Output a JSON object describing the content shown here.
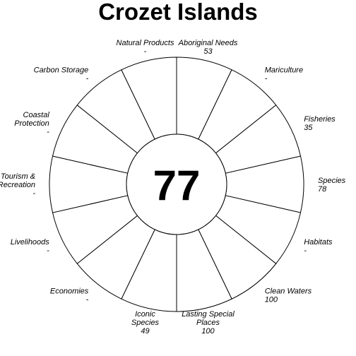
{
  "chart_data": {
    "type": "flower",
    "title": "Crozet Islands",
    "center_score": "77",
    "max": 100,
    "petals": [
      {
        "label": [
          "Species"
        ],
        "value_text": "78",
        "value": 78,
        "color": "#5e4fa2"
      },
      {
        "label": [
          "Habitats"
        ],
        "value_text": "-",
        "value": null,
        "color": "#ffffff"
      },
      {
        "label": [
          "Clean Waters"
        ],
        "value_text": "100",
        "value": 100,
        "color": "#57a9b0"
      },
      {
        "label": [
          "Lasting Special",
          "Places"
        ],
        "value_text": "100",
        "value": 100,
        "color": "#74c6a6"
      },
      {
        "label": [
          "Iconic",
          "Species"
        ],
        "value_text": "49",
        "value": 49,
        "color": "#b9e2a0"
      },
      {
        "label": [
          "Economies"
        ],
        "value_text": "-",
        "value": null,
        "color": "#ffffff"
      },
      {
        "label": [
          "Livelihoods"
        ],
        "value_text": "-",
        "value": null,
        "color": "#ffffff"
      },
      {
        "label": [
          "Tourism &",
          "Recreation"
        ],
        "value_text": "-",
        "value": null,
        "color": "#ffffff"
      },
      {
        "label": [
          "Coastal",
          "Protection"
        ],
        "value_text": "-",
        "value": null,
        "color": "#ffffff"
      },
      {
        "label": [
          "Carbon Storage"
        ],
        "value_text": "-",
        "value": null,
        "color": "#ffffff"
      },
      {
        "label": [
          "Natural Products"
        ],
        "value_text": "-",
        "value": null,
        "color": "#ffffff"
      },
      {
        "label": [
          "Aboriginal Needs"
        ],
        "value_text": "53",
        "value": 53,
        "color": "#e95d48"
      },
      {
        "label": [
          "Mariculture"
        ],
        "value_text": "-",
        "value": null,
        "color": "#ffffff"
      },
      {
        "label": [
          "Fisheries"
        ],
        "value_text": "35",
        "value": 35,
        "color": "#9e0142"
      }
    ]
  }
}
